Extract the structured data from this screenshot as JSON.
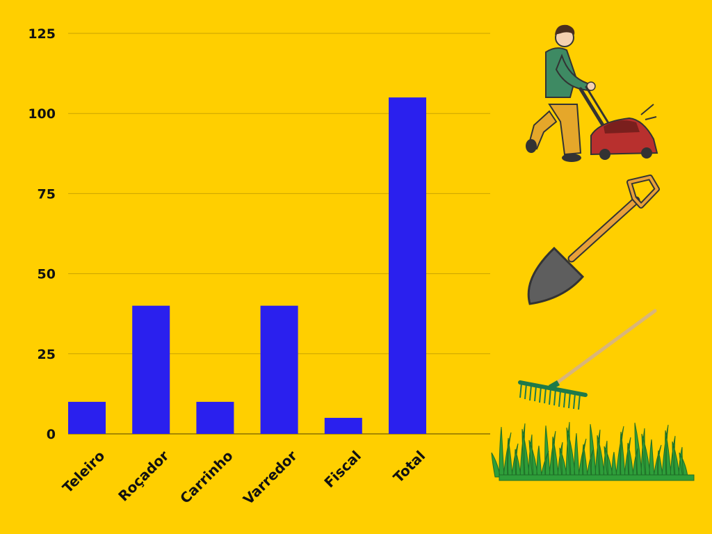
{
  "colors": {
    "background": "#FFCF00",
    "bar": "#2A20EE",
    "grid": "#C9A300",
    "text": "#111111"
  },
  "chart_data": {
    "type": "bar",
    "categories": [
      "Teleiro",
      "Roçador",
      "Carrinho",
      "Varredor",
      "Fiscal",
      "Total"
    ],
    "values": [
      10,
      40,
      10,
      40,
      5,
      105
    ],
    "yticks": [
      0,
      25,
      50,
      75,
      100,
      125
    ],
    "ylim": [
      0,
      125
    ],
    "grid": true,
    "title": "",
    "xlabel": "",
    "ylabel": ""
  },
  "illustrations": [
    "person-mowing-lawn-icon",
    "shovel-icon",
    "rake-icon",
    "grass-icon"
  ]
}
